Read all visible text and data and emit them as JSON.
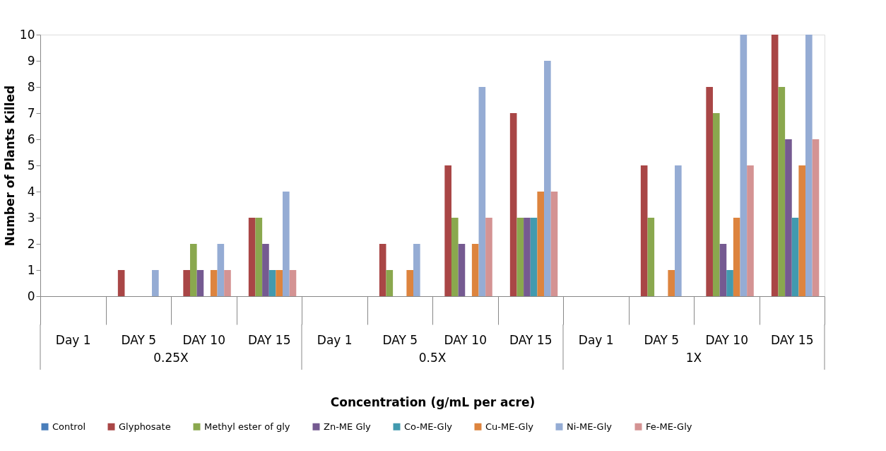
{
  "chart_data": {
    "type": "bar",
    "xlabel": "Concentration (g/mL per acre)",
    "ylabel": "Number of Plants Killed",
    "categories": [
      "Day 1",
      "DAY 5",
      "DAY 10",
      "DAY 15",
      "Day 1",
      "DAY 5",
      "DAY 10",
      "DAY 15",
      "Day 1",
      "DAY 5",
      "DAY 10",
      "DAY 15"
    ],
    "annotations": [
      "0.25X",
      "0.5X",
      "1X"
    ],
    "ylim": [
      0,
      10
    ],
    "yticks": [
      0,
      1,
      2,
      3,
      4,
      5,
      6,
      7,
      8,
      9,
      10
    ],
    "grid": false,
    "legend": "bottom",
    "series": [
      {
        "name": "Control",
        "color": "#4a7ebb",
        "values": [
          0,
          0,
          0,
          0,
          0,
          0,
          0,
          0,
          0,
          0,
          0,
          0
        ]
      },
      {
        "name": "Glyphosate",
        "color": "#a94646",
        "values": [
          0,
          1,
          1,
          3,
          0,
          2,
          5,
          7,
          0,
          5,
          8,
          10
        ]
      },
      {
        "name": "Methyl ester of gly",
        "color": "#8aa84e",
        "values": [
          0,
          0,
          2,
          3,
          0,
          1,
          3,
          3,
          0,
          3,
          7,
          8
        ]
      },
      {
        "name": "Zn-ME Gly",
        "color": "#755a91",
        "values": [
          0,
          0,
          1,
          2,
          0,
          0,
          2,
          3,
          0,
          0,
          2,
          6
        ]
      },
      {
        "name": "Co-ME-Gly",
        "color": "#429aaf",
        "values": [
          0,
          0,
          0,
          1,
          0,
          0,
          0,
          3,
          0,
          0,
          1,
          3
        ]
      },
      {
        "name": "Cu-ME-Gly",
        "color": "#dd843e",
        "values": [
          0,
          0,
          1,
          1,
          0,
          1,
          2,
          4,
          0,
          1,
          3,
          5
        ]
      },
      {
        "name": "Ni-ME-Gly",
        "color": "#95acd4",
        "values": [
          0,
          1,
          2,
          4,
          0,
          2,
          8,
          9,
          0,
          5,
          10,
          10
        ]
      },
      {
        "name": "Fe-ME-Gly",
        "color": "#d49393",
        "values": [
          0,
          0,
          1,
          1,
          0,
          0,
          3,
          4,
          0,
          0,
          5,
          6
        ]
      }
    ]
  }
}
